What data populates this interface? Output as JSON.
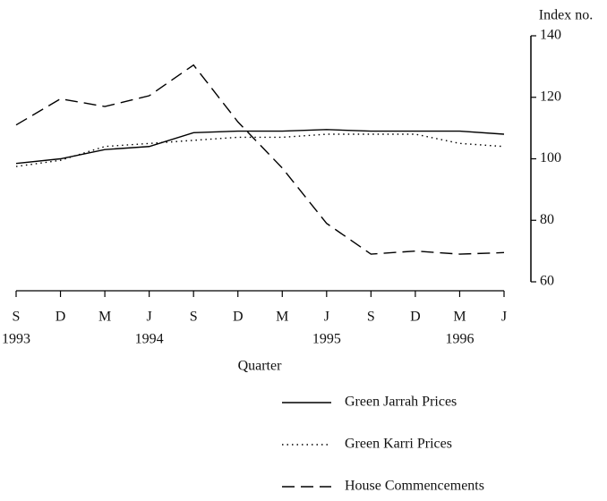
{
  "chart_data": {
    "type": "line",
    "y_axis_label": "Index no.",
    "x_axis_label": "Quarter",
    "categories": [
      "S",
      "D",
      "M",
      "J",
      "S",
      "D",
      "M",
      "J",
      "S",
      "D",
      "M",
      "J"
    ],
    "years": [
      "1993",
      null,
      null,
      "1994",
      null,
      null,
      null,
      "1995",
      null,
      null,
      "1996",
      null
    ],
    "ylim": [
      60,
      140
    ],
    "yticks": [
      60,
      80,
      100,
      120,
      140
    ],
    "y_axis_side": "right",
    "grid": false,
    "series": [
      {
        "name": "Green Jarrah Prices",
        "color": "#000000",
        "style": "solid",
        "values": [
          98.5,
          100,
          103,
          104,
          108.5,
          109,
          109,
          109.5,
          109,
          109,
          109,
          108
        ]
      },
      {
        "name": "Green Karri Prices",
        "color": "#000000",
        "style": "dotted",
        "values": [
          97.5,
          99.5,
          104,
          105,
          106,
          107,
          107,
          108,
          108,
          108,
          105,
          104
        ]
      },
      {
        "name": "House Commencements",
        "color": "#000000",
        "style": "dashed",
        "values": [
          111,
          119.5,
          117,
          120.5,
          130.5,
          112,
          97,
          79,
          69,
          70,
          69,
          69.5
        ]
      }
    ]
  }
}
